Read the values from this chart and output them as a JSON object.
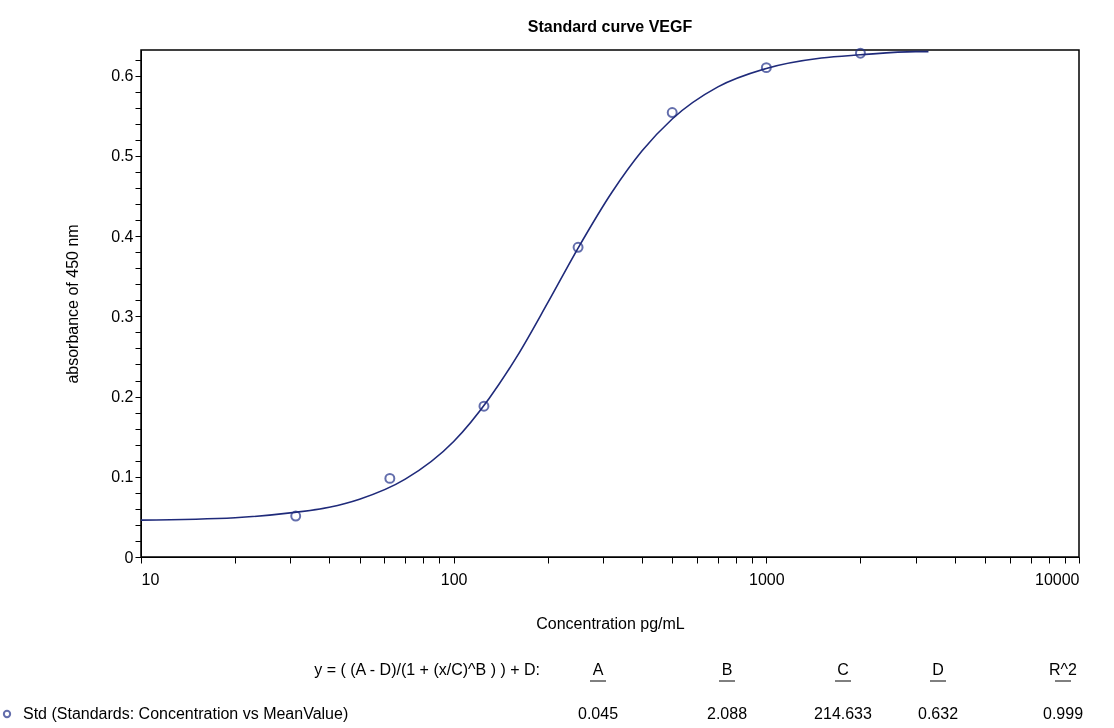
{
  "chart_data": {
    "type": "scatter",
    "title": "Standard curve  VEGF",
    "xlabel": "Concentration  pg/mL",
    "ylabel": "absorbance of 450 nm",
    "log": "x",
    "xlim": [
      10,
      10000
    ],
    "ylim": [
      0,
      0.632
    ],
    "xticks": [
      10,
      {
        "value": 20,
        "label": null
      },
      {
        "value": 30,
        "label": null
      },
      {
        "value": 40,
        "label": null
      },
      {
        "value": 50,
        "label": null
      },
      {
        "value": 60,
        "label": null
      },
      {
        "value": 70,
        "label": null
      },
      {
        "value": 80,
        "label": null
      },
      {
        "value": 90,
        "label": null
      },
      100,
      {
        "value": 200,
        "label": null
      },
      {
        "value": 300,
        "label": null
      },
      {
        "value": 400,
        "label": null
      },
      {
        "value": 500,
        "label": null
      },
      {
        "value": 600,
        "label": null
      },
      {
        "value": 700,
        "label": null
      },
      {
        "value": 800,
        "label": null
      },
      {
        "value": 900,
        "label": null
      },
      1000,
      {
        "value": 2000,
        "label": null
      },
      {
        "value": 3000,
        "label": null
      },
      {
        "value": 4000,
        "label": null
      },
      {
        "value": 5000,
        "label": null
      },
      {
        "value": 6000,
        "label": null
      },
      {
        "value": 7000,
        "label": null
      },
      {
        "value": 8000,
        "label": null
      },
      {
        "value": 9000,
        "label": null
      },
      10000
    ],
    "yticks": [
      0,
      {
        "value": 0.02,
        "label": null
      },
      {
        "value": 0.04,
        "label": null
      },
      {
        "value": 0.06,
        "label": null
      },
      {
        "value": 0.08,
        "label": null
      },
      0.1,
      {
        "value": 0.12,
        "label": null
      },
      {
        "value": 0.14,
        "label": null
      },
      {
        "value": 0.16,
        "label": null
      },
      {
        "value": 0.18,
        "label": null
      },
      0.2,
      {
        "value": 0.22,
        "label": null
      },
      {
        "value": 0.24,
        "label": null
      },
      {
        "value": 0.26,
        "label": null
      },
      {
        "value": 0.28,
        "label": null
      },
      0.3,
      {
        "value": 0.32,
        "label": null
      },
      {
        "value": 0.34,
        "label": null
      },
      {
        "value": 0.36,
        "label": null
      },
      {
        "value": 0.38,
        "label": null
      },
      0.4,
      {
        "value": 0.42,
        "label": null
      },
      {
        "value": 0.44,
        "label": null
      },
      {
        "value": 0.46,
        "label": null
      },
      {
        "value": 0.48,
        "label": null
      },
      0.5,
      {
        "value": 0.52,
        "label": null
      },
      {
        "value": 0.54,
        "label": null
      },
      {
        "value": 0.56,
        "label": null
      },
      {
        "value": 0.58,
        "label": null
      },
      0.6,
      {
        "value": 0.62,
        "label": null
      }
    ],
    "grid": false,
    "legend": "bottom left",
    "marker": "circle",
    "series": [
      {
        "name": "Std (Standards: Concentration vs MeanValue)",
        "color": "#22318a",
        "x": [
          31.25,
          62.5,
          125,
          250,
          500,
          1000,
          2000
        ],
        "values": [
          0.051,
          0.098,
          0.188,
          0.386,
          0.554,
          0.61,
          0.628
        ]
      },
      {
        "type": "line",
        "color": "#1f2a7a",
        "line_style": "solid",
        "marker": "none",
        "x": [
          10,
          20,
          30,
          40,
          50,
          70,
          100,
          130,
          160,
          200,
          250,
          320,
          400,
          500,
          700,
          1000,
          1500,
          2000,
          3000,
          3300
        ],
        "values": [
          0.046,
          0.049,
          0.055,
          0.062,
          0.072,
          0.097,
          0.144,
          0.198,
          0.251,
          0.317,
          0.385,
          0.454,
          0.506,
          0.546,
          0.586,
          0.609,
          0.622,
          0.626,
          0.63,
          0.63
        ]
      }
    ],
    "annotations": [
      "y = ( (A - D)/(1 + (x/C)^B ) ) + D:",
      "A",
      "B",
      "C",
      "D",
      "R^2",
      "0.045",
      "2.088",
      "214.633",
      "0.632",
      "0.999"
    ]
  }
}
